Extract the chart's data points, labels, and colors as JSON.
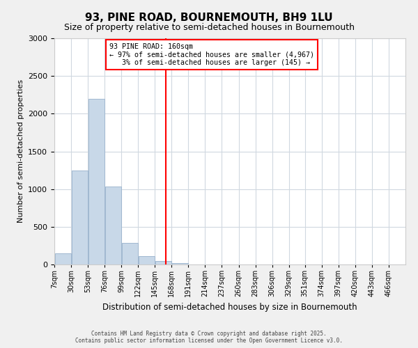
{
  "title": "93, PINE ROAD, BOURNEMOUTH, BH9 1LU",
  "subtitle": "Size of property relative to semi-detached houses in Bournemouth",
  "xlabel": "Distribution of semi-detached houses by size in Bournemouth",
  "ylabel": "Number of semi-detached properties",
  "bin_labels": [
    "7sqm",
    "30sqm",
    "53sqm",
    "76sqm",
    "99sqm",
    "122sqm",
    "145sqm",
    "168sqm",
    "191sqm",
    "214sqm",
    "237sqm",
    "260sqm",
    "283sqm",
    "306sqm",
    "329sqm",
    "351sqm",
    "374sqm",
    "397sqm",
    "420sqm",
    "443sqm",
    "466sqm"
  ],
  "bin_edges": [
    7,
    30,
    53,
    76,
    99,
    122,
    145,
    168,
    191,
    214,
    237,
    260,
    283,
    306,
    329,
    351,
    374,
    397,
    420,
    443,
    466
  ],
  "bar_heights": [
    150,
    1250,
    2200,
    1030,
    290,
    110,
    50,
    15,
    0,
    0,
    0,
    0,
    0,
    0,
    0,
    0,
    0,
    0,
    0,
    0
  ],
  "bar_color": "#c8d8e8",
  "bar_edge_color": "#a0b8d0",
  "vline_x": 160,
  "vline_color": "red",
  "ylim": [
    0,
    3000
  ],
  "yticks": [
    0,
    500,
    1000,
    1500,
    2000,
    2500,
    3000
  ],
  "annotation_line1": "93 PINE ROAD: 160sqm",
  "annotation_line2": "← 97% of semi-detached houses are smaller (4,967)",
  "annotation_line3": "   3% of semi-detached houses are larger (145) →",
  "annotation_box_color": "white",
  "annotation_box_edge_color": "red",
  "footer_line1": "Contains HM Land Registry data © Crown copyright and database right 2025.",
  "footer_line2": "Contains public sector information licensed under the Open Government Licence v3.0.",
  "bg_color": "#f0f0f0",
  "plot_bg_color": "white",
  "grid_color": "#d0d8e0"
}
